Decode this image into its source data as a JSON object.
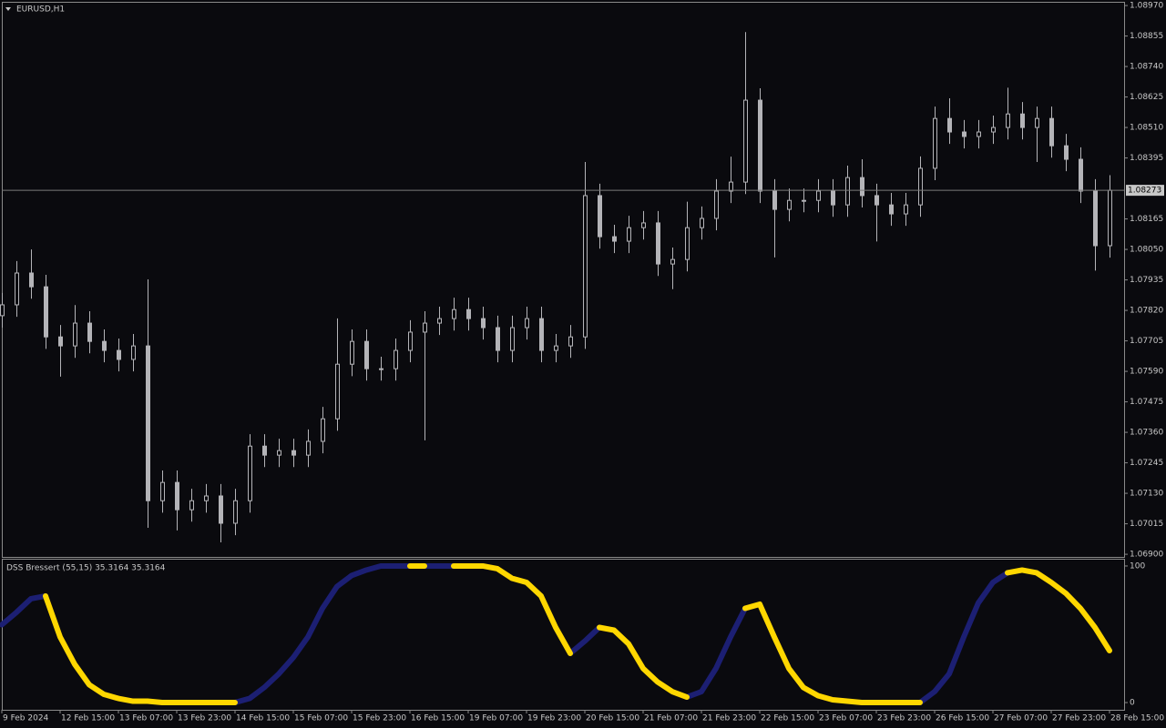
{
  "chart_data": [
    {
      "type": "candlestick",
      "title": "EURUSD,H1",
      "color": "#b4b4b8",
      "xlim": [
        0,
        77
      ],
      "ylim": [
        1.0689,
        1.08984
      ],
      "yticks": [
        {
          "value": 1.0897,
          "label": "1.08970"
        },
        1.08855,
        {
          "value": 1.0874,
          "label": "1.08740"
        },
        1.08625,
        {
          "value": 1.0851,
          "label": "1.08510"
        },
        1.08395,
        1.08165,
        {
          "value": 1.0805,
          "label": "1.08050"
        },
        1.07935,
        {
          "value": 1.0782,
          "label": "1.07820"
        },
        1.07705,
        {
          "value": 1.0759,
          "label": "1.07590"
        },
        1.07475,
        {
          "value": 1.0736,
          "label": "1.07360"
        },
        1.07245,
        {
          "value": 1.0713,
          "label": "1.07130"
        },
        1.07015,
        {
          "value": 1.069,
          "label": "1.06900"
        }
      ],
      "current_price": 1.08273,
      "open": [
        1.078,
        1.07841,
        1.07961,
        1.07909,
        1.0772,
        1.07686,
        1.07772,
        1.07703,
        1.07669,
        1.07635,
        1.07686,
        1.07102,
        1.07171,
        1.07068,
        1.07102,
        1.0712,
        1.07017,
        1.07102,
        1.07308,
        1.07274,
        1.07291,
        1.07274,
        1.07326,
        1.07411,
        1.07617,
        1.07703,
        1.076,
        1.076,
        1.07669,
        1.07738,
        1.07772,
        1.07789,
        1.07823,
        1.07789,
        1.07755,
        1.07669,
        1.07755,
        1.07789,
        1.07669,
        1.07686,
        1.0772,
        1.08253,
        1.08098,
        1.08081,
        1.08132,
        1.0815,
        1.07995,
        1.08012,
        1.08132,
        1.08167,
        1.0827,
        1.08304,
        1.08613,
        1.0827,
        1.08201,
        1.08235,
        1.08235,
        1.0827,
        1.08218,
        1.08321,
        1.08253,
        1.08218,
        1.08184,
        1.08218,
        1.08356,
        1.08544,
        1.08493,
        1.08476,
        1.08493,
        1.0851,
        1.08561,
        1.0851,
        1.08544,
        1.08441,
        1.0839,
        1.0827,
        1.08064
      ],
      "high": [
        1.07886,
        1.08006,
        1.0805,
        1.07954,
        1.07765,
        1.0784,
        1.07817,
        1.07748,
        1.07714,
        1.07731,
        1.07937,
        1.07216,
        1.07216,
        1.07147,
        1.07165,
        1.07165,
        1.07147,
        1.07353,
        1.07353,
        1.07336,
        1.07336,
        1.07371,
        1.07456,
        1.0779,
        1.07748,
        1.07748,
        1.07645,
        1.07714,
        1.07783,
        1.07817,
        1.07834,
        1.07868,
        1.07868,
        1.07834,
        1.078,
        1.078,
        1.07834,
        1.07834,
        1.07731,
        1.07765,
        1.0838,
        1.08298,
        1.08143,
        1.08177,
        1.08195,
        1.08195,
        1.08057,
        1.0823,
        1.08212,
        1.08315,
        1.084,
        1.0887,
        1.08658,
        1.08315,
        1.0828,
        1.0828,
        1.08315,
        1.08315,
        1.08366,
        1.0839,
        1.08298,
        1.08263,
        1.08263,
        1.08401,
        1.08589,
        1.0862,
        1.08538,
        1.08538,
        1.08555,
        1.0866,
        1.08606,
        1.08589,
        1.08589,
        1.08486,
        1.08435,
        1.08315,
        1.0833
      ],
      "low": [
        1.07755,
        1.07796,
        1.07864,
        1.07675,
        1.0757,
        1.07641,
        1.07658,
        1.07624,
        1.0759,
        1.0759,
        1.07,
        1.07057,
        1.0699,
        1.07023,
        1.07057,
        1.06945,
        1.06972,
        1.07057,
        1.07229,
        1.07229,
        1.07229,
        1.07229,
        1.07281,
        1.07366,
        1.07572,
        1.07555,
        1.07555,
        1.07555,
        1.07624,
        1.0733,
        1.07727,
        1.07744,
        1.07744,
        1.0771,
        1.07624,
        1.07624,
        1.0771,
        1.07624,
        1.07624,
        1.07641,
        1.07675,
        1.08053,
        1.08036,
        1.08036,
        1.08087,
        1.0795,
        1.079,
        1.07967,
        1.08087,
        1.08122,
        1.08225,
        1.08259,
        1.08225,
        1.0802,
        1.08156,
        1.0819,
        1.0819,
        1.08173,
        1.08173,
        1.08208,
        1.0808,
        1.08139,
        1.08139,
        1.08173,
        1.08311,
        1.08448,
        1.08431,
        1.08431,
        1.08448,
        1.08465,
        1.08465,
        1.0838,
        1.08396,
        1.08345,
        1.08225,
        1.0797,
        1.08019
      ],
      "close": [
        1.07841,
        1.07961,
        1.07909,
        1.0772,
        1.07686,
        1.07772,
        1.07703,
        1.07669,
        1.07635,
        1.07686,
        1.07102,
        1.07171,
        1.07068,
        1.07102,
        1.0712,
        1.07017,
        1.07102,
        1.07308,
        1.07274,
        1.07291,
        1.07274,
        1.07326,
        1.07411,
        1.07617,
        1.07703,
        1.076,
        1.076,
        1.07669,
        1.07738,
        1.07772,
        1.07789,
        1.07823,
        1.07789,
        1.07755,
        1.07669,
        1.07755,
        1.07789,
        1.07669,
        1.07686,
        1.0772,
        1.08253,
        1.08098,
        1.08081,
        1.08132,
        1.0815,
        1.07995,
        1.08012,
        1.08132,
        1.08167,
        1.0827,
        1.08304,
        1.08613,
        1.0827,
        1.08201,
        1.08235,
        1.08235,
        1.0827,
        1.08218,
        1.08321,
        1.08253,
        1.08218,
        1.08184,
        1.08218,
        1.08356,
        1.08544,
        1.08493,
        1.08476,
        1.08493,
        1.0851,
        1.08561,
        1.0851,
        1.08544,
        1.08441,
        1.0839,
        1.0827,
        1.08064,
        1.08273
      ]
    },
    {
      "type": "line",
      "title": "DSS Bressert (55,15) 35.3164 35.3164",
      "xlim": [
        0,
        77
      ],
      "ylim": [
        -5.3,
        105.3
      ],
      "yticks": [
        100,
        0
      ],
      "xticks": [
        {
          "value": 0,
          "label": "9 Feb 2024"
        },
        {
          "value": 4,
          "label": "12 Feb 15:00"
        },
        {
          "value": 8,
          "label": "13 Feb 07:00"
        },
        {
          "value": 12,
          "label": "13 Feb 23:00"
        },
        {
          "value": 16,
          "label": "14 Feb 15:00"
        },
        {
          "value": 20,
          "label": "15 Feb 07:00"
        },
        {
          "value": 24,
          "label": "15 Feb 23:00"
        },
        {
          "value": 28,
          "label": "16 Feb 15:00"
        },
        {
          "value": 32,
          "label": "19 Feb 07:00"
        },
        {
          "value": 36,
          "label": "19 Feb 23:00"
        },
        {
          "value": 40,
          "label": "20 Feb 15:00"
        },
        {
          "value": 44,
          "label": "21 Feb 07:00"
        },
        {
          "value": 48,
          "label": "21 Feb 23:00"
        },
        {
          "value": 52,
          "label": "22 Feb 15:00"
        },
        {
          "value": 56,
          "label": "23 Feb 07:00"
        },
        {
          "value": 60,
          "label": "23 Feb 23:00"
        },
        {
          "value": 64,
          "label": "26 Feb 15:00"
        },
        {
          "value": 68,
          "label": "27 Feb 07:00"
        },
        {
          "value": 72,
          "label": "27 Feb 23:00"
        },
        {
          "value": 76,
          "label": "28 Feb 15:00"
        }
      ],
      "series": [
        {
          "color": "#1c1f73",
          "values": [
            57,
            66,
            76,
            78,
            null,
            null,
            null,
            null,
            null,
            null,
            null,
            null,
            null,
            null,
            null,
            null,
            0,
            3,
            11,
            21,
            33,
            48,
            69,
            85,
            93,
            97,
            100,
            100,
            100,
            100,
            100,
            100,
            null,
            null,
            null,
            null,
            null,
            null,
            null,
            36,
            45,
            55,
            null,
            null,
            null,
            null,
            null,
            4,
            8,
            25,
            48,
            69,
            null,
            null,
            null,
            null,
            null,
            null,
            null,
            null,
            null,
            null,
            null,
            0,
            8,
            21,
            48,
            73,
            88,
            95,
            null,
            null,
            null,
            null,
            null,
            null,
            null
          ]
        },
        {
          "color": "#ffd700",
          "values": [
            null,
            null,
            null,
            78,
            48,
            28,
            13,
            6,
            3,
            1,
            1,
            0,
            0,
            0,
            0,
            0,
            0,
            null,
            null,
            null,
            null,
            null,
            null,
            null,
            null,
            null,
            null,
            null,
            100,
            100,
            null,
            100,
            100,
            100,
            98,
            91,
            88,
            78,
            55,
            36,
            null,
            55,
            53,
            43,
            25,
            15,
            8,
            4,
            null,
            null,
            null,
            69,
            72,
            48,
            25,
            11,
            5,
            2,
            1,
            0,
            0,
            0,
            0,
            0,
            null,
            null,
            null,
            null,
            null,
            95,
            97,
            95,
            88,
            80,
            69,
            55,
            38
          ]
        }
      ]
    }
  ]
}
